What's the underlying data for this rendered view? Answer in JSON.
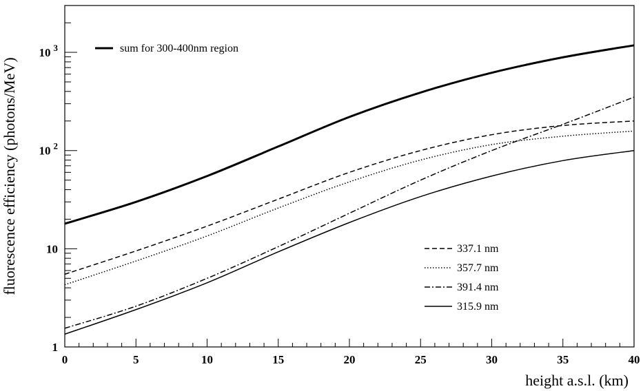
{
  "chart_data": {
    "type": "line",
    "title": "",
    "xlabel": "height a.s.l. (km)",
    "ylabel": "fluorescence efficiency (photons/MeV)",
    "xlim": [
      0,
      40
    ],
    "ylim": [
      1,
      3000
    ],
    "yscale": "log",
    "grid": false,
    "x_ticks": [
      0,
      5,
      10,
      15,
      20,
      25,
      30,
      35,
      40
    ],
    "x_tick_labels": [
      "0",
      "5",
      "10",
      "15",
      "20",
      "25",
      "30",
      "35",
      "40"
    ],
    "y_major_ticks": [
      1,
      10,
      100,
      1000
    ],
    "y_tick_labels": [
      "1",
      "10",
      "10 2",
      "10 3"
    ],
    "legend_placement": [
      "top-left",
      "bottom-right"
    ],
    "x": [
      0,
      5,
      10,
      15,
      20,
      25,
      30,
      35,
      40
    ],
    "series": [
      {
        "name": "sum for 300-400nm region",
        "style": "thick-solid",
        "values": [
          18,
          30,
          55,
          110,
          220,
          390,
          620,
          890,
          1180
        ]
      },
      {
        "name": "337.1 nm",
        "style": "dashed",
        "values": [
          5.5,
          9.5,
          17,
          32,
          60,
          100,
          145,
          180,
          200
        ]
      },
      {
        "name": "357.7 nm",
        "style": "dotted",
        "values": [
          4.3,
          7.5,
          13.5,
          26,
          48,
          80,
          115,
          140,
          158
        ]
      },
      {
        "name": "391.4 nm",
        "style": "dash-dot",
        "values": [
          1.55,
          2.6,
          5,
          10.5,
          23,
          50,
          100,
          185,
          350
        ]
      },
      {
        "name": "315.9 nm",
        "style": "solid",
        "values": [
          1.35,
          2.4,
          4.5,
          9.3,
          18.5,
          34,
          55,
          79,
          100
        ]
      }
    ]
  }
}
